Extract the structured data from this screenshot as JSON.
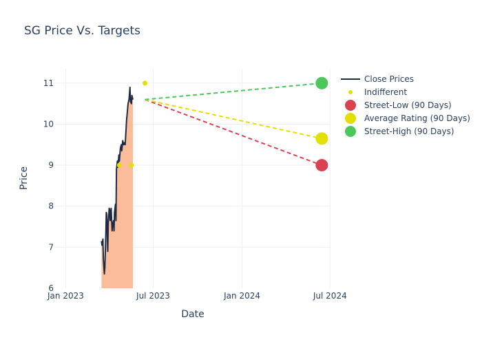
{
  "chart_data": {
    "type": "line",
    "title": "SG Price Vs. Targets",
    "xlabel": "Date",
    "ylabel": "Price",
    "x_range": [
      "2022-12-10",
      "2024-07-02"
    ],
    "ylim": [
      6,
      11.35
    ],
    "x_ticks": [
      {
        "date": "2023-01-01",
        "label": "Jan 2023"
      },
      {
        "date": "2023-07-01",
        "label": "Jul 2023"
      },
      {
        "date": "2024-01-01",
        "label": "Jan 2024"
      },
      {
        "date": "2024-07-01",
        "label": "Jul 2024"
      }
    ],
    "y_ticks": [
      6,
      7,
      8,
      9,
      10,
      11
    ],
    "grid": true,
    "legend_position": "right",
    "series": [
      {
        "name": "Close Prices",
        "kind": "line-area",
        "color": "#1f2a44",
        "fill_color": "#fbbd99",
        "points": [
          [
            "2023-03-16",
            7.15
          ],
          [
            "2023-03-17",
            7.05
          ],
          [
            "2023-03-19",
            7.2
          ],
          [
            "2023-03-20",
            6.7
          ],
          [
            "2023-03-22",
            6.35
          ],
          [
            "2023-03-23",
            6.5
          ],
          [
            "2023-03-25",
            7.3
          ],
          [
            "2023-03-26",
            7.85
          ],
          [
            "2023-03-27",
            7.8
          ],
          [
            "2023-03-29",
            6.9
          ],
          [
            "2023-03-30",
            7.6
          ],
          [
            "2023-04-01",
            7.95
          ],
          [
            "2023-04-02",
            7.9
          ],
          [
            "2023-04-03",
            7.65
          ],
          [
            "2023-04-05",
            7.95
          ],
          [
            "2023-04-07",
            7.4
          ],
          [
            "2023-04-08",
            7.55
          ],
          [
            "2023-04-10",
            7.65
          ],
          [
            "2023-04-11",
            7.4
          ],
          [
            "2023-04-12",
            7.85
          ],
          [
            "2023-04-14",
            8.05
          ],
          [
            "2023-04-15",
            7.65
          ],
          [
            "2023-04-16",
            8.9
          ],
          [
            "2023-04-18",
            9.1
          ],
          [
            "2023-04-19",
            8.95
          ],
          [
            "2023-04-21",
            9.25
          ],
          [
            "2023-04-22",
            9.1
          ],
          [
            "2023-04-24",
            9.4
          ],
          [
            "2023-04-26",
            9.5
          ],
          [
            "2023-04-27",
            9.35
          ],
          [
            "2023-04-29",
            9.6
          ],
          [
            "2023-05-01",
            9.5
          ],
          [
            "2023-05-03",
            9.55
          ],
          [
            "2023-05-04",
            9.5
          ],
          [
            "2023-05-07",
            10.1
          ],
          [
            "2023-05-10",
            10.5
          ],
          [
            "2023-05-12",
            10.6
          ],
          [
            "2023-05-14",
            10.9
          ],
          [
            "2023-05-15",
            10.55
          ],
          [
            "2023-05-17",
            10.5
          ],
          [
            "2023-05-18",
            10.7
          ],
          [
            "2023-05-20",
            10.6
          ]
        ]
      },
      {
        "name": "Indifferent",
        "kind": "markers",
        "color": "#e3e000",
        "points": [
          [
            "2023-04-22",
            9.0
          ],
          [
            "2023-05-17",
            9.0
          ],
          [
            "2023-06-14",
            11.0
          ]
        ]
      },
      {
        "name": "Street-Low (90 Days)",
        "kind": "target",
        "color": "#d9434f",
        "from": [
          "2023-06-14",
          10.6
        ],
        "to": [
          "2024-06-14",
          9.0
        ]
      },
      {
        "name": "Average Rating (90 Days)",
        "kind": "target",
        "color": "#e3e000",
        "from": [
          "2023-06-14",
          10.6
        ],
        "to": [
          "2024-06-14",
          9.65
        ]
      },
      {
        "name": "Street-High (90 Days)",
        "kind": "target",
        "color": "#4dc65a",
        "from": [
          "2023-06-14",
          10.6
        ],
        "to": [
          "2024-06-14",
          11.0
        ]
      }
    ]
  }
}
